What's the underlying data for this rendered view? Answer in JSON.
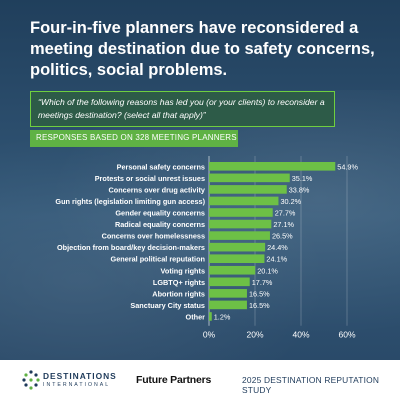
{
  "headline": "Four-in-five planners have reconsidered a meeting destination due to safety concerns, politics, social problems.",
  "question": "“Which of the following reasons has led you (or your clients) to reconsider a meetings destination? (select all that apply)”",
  "responses_label": "RESPONSES BASED ON 328 MEETING PLANNERS",
  "colors": {
    "bar": "#6dc046",
    "accent_box": "#2d5b48",
    "background": "#2b4d6c"
  },
  "chart_data": {
    "type": "bar",
    "orientation": "horizontal",
    "categories": [
      "Personal safety concerns",
      "Protests or social unrest issues",
      "Concerns over drug activity",
      "Gun rights (legislation limiting gun access)",
      "Gender equality concerns",
      "Radical equality concerns",
      "Concerns over homelessness",
      "Objection from board/key decision-makers",
      "General political reputation",
      "Voting rights",
      "LGBTQ+ rights",
      "Abortion rights",
      "Sanctuary City status",
      "Other"
    ],
    "values": [
      54.9,
      35.1,
      33.8,
      30.2,
      27.7,
      27.1,
      26.5,
      24.4,
      24.1,
      20.1,
      17.7,
      16.5,
      16.5,
      1.2
    ],
    "value_labels": [
      "54.9%",
      "35.1%",
      "33.8%",
      "30.2%",
      "27.7%",
      "27.1%",
      "26.5%",
      "24.4%",
      "24.1%",
      "20.1%",
      "17.7%",
      "16.5%",
      "16.5%",
      "1.2%"
    ],
    "xlim": [
      0,
      60
    ],
    "xticks": [
      "0%",
      "20%",
      "40%",
      "60%"
    ],
    "grid": true,
    "title": "",
    "xlabel": "",
    "ylabel": ""
  },
  "footer": {
    "logo1_line1": "DESTINATIONS",
    "logo1_line2": "INTERNATIONAL",
    "logo2": "Future Partners",
    "study": "2025 DESTINATION REPUTATION STUDY"
  }
}
